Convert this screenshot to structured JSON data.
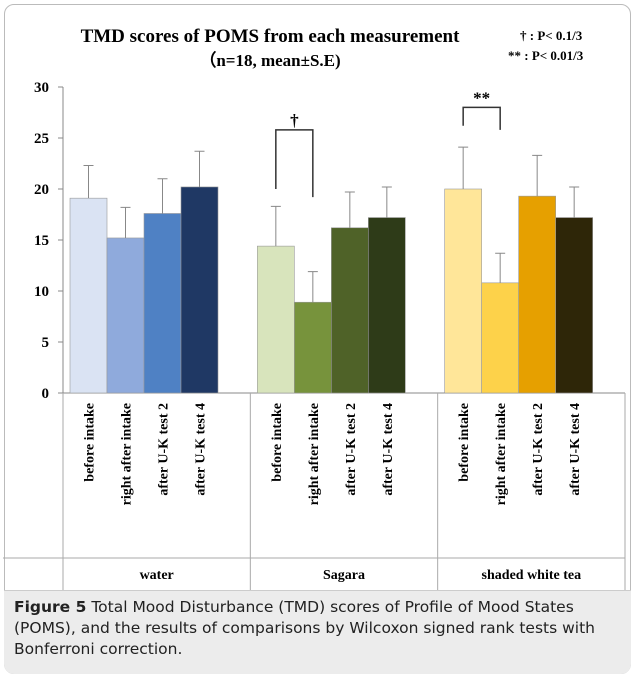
{
  "chart_data": {
    "type": "grouped-bar",
    "title": "TMD scores of POMS from each measurement",
    "subtitle": "（n=18, mean±S.E)",
    "notes": [
      "†  : P< 0.1/3",
      "**  : P< 0.01/3"
    ],
    "ylim": [
      0,
      30
    ],
    "yticks": [
      0,
      5,
      10,
      15,
      20,
      25,
      30
    ],
    "bar_labels": [
      "before intake",
      "right after intake",
      "after U-K test 2",
      "after U-K test 4"
    ],
    "groups": [
      {
        "name": "water",
        "colors": [
          "#dae3f3",
          "#8faadc",
          "#4f81c4",
          "#1f3864"
        ],
        "values": [
          19.1,
          15.2,
          17.6,
          20.2
        ],
        "errors": [
          3.2,
          3.0,
          3.4,
          3.5
        ]
      },
      {
        "name": "Sagara",
        "colors": [
          "#d8e4bc",
          "#77933c",
          "#4f6228",
          "#2e3b18"
        ],
        "values": [
          14.4,
          8.9,
          16.2,
          17.2
        ],
        "errors": [
          3.9,
          3.0,
          3.5,
          3.0
        ]
      },
      {
        "name": "shaded white tea",
        "colors": [
          "#ffe699",
          "#fdd24a",
          "#e6a000",
          "#2e2608"
        ],
        "values": [
          20.0,
          10.8,
          19.3,
          17.2
        ],
        "errors": [
          4.1,
          2.9,
          4.0,
          3.0
        ]
      }
    ],
    "brackets": [
      {
        "group": 1,
        "label": "†",
        "top": 25.8,
        "bottom": [
          20,
          19.2
        ]
      },
      {
        "group": 2,
        "label": "**",
        "top": 28,
        "bottom": [
          26.2,
          25.8
        ]
      }
    ]
  },
  "caption": {
    "label": "Figure 5",
    "text": "Total Mood Disturbance (TMD) scores of Profile of Mood States (POMS), and the results of comparisons by Wilcoxon signed rank tests with Bonferroni correction."
  }
}
